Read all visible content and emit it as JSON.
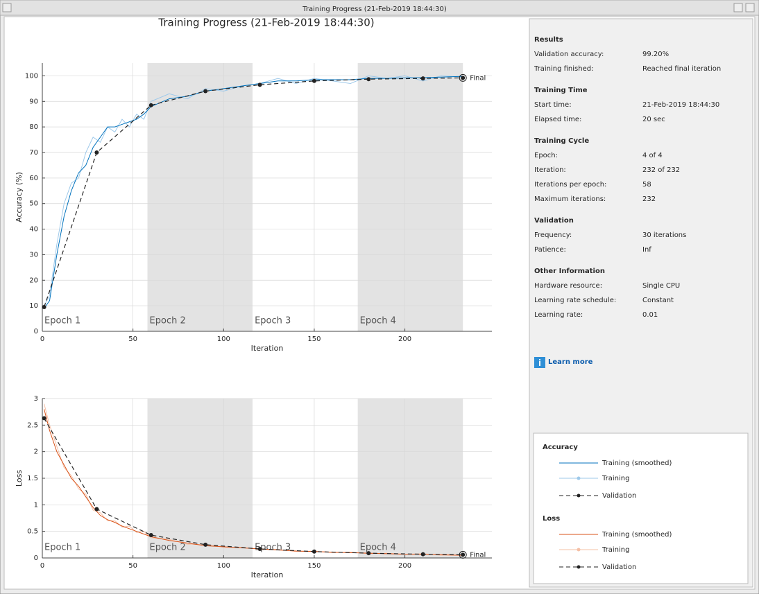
{
  "window_title": "Training Progress (21-Feb-2019 18:44:30)",
  "title": "Training Progress (21-Feb-2019 18:44:30)",
  "chart_data": [
    {
      "type": "line",
      "xlabel": "Iteration",
      "ylabel": "Accuracy (%)",
      "xlim": [
        0,
        248
      ],
      "ylim": [
        0,
        105
      ],
      "xticks": [
        0,
        50,
        100,
        150,
        200
      ],
      "yticks": [
        0,
        10,
        20,
        30,
        40,
        50,
        60,
        70,
        80,
        90,
        100
      ],
      "grid": true,
      "epochs": [
        {
          "label": "Epoch 1",
          "x": [
            0,
            58
          ]
        },
        {
          "label": "Epoch 2",
          "x": [
            58,
            116
          ]
        },
        {
          "label": "Epoch 3",
          "x": [
            116,
            174
          ]
        },
        {
          "label": "Epoch 4",
          "x": [
            174,
            232
          ]
        }
      ],
      "final_label": "Final",
      "series": [
        {
          "name": "Training",
          "color": "#9ec9ea",
          "x": [
            1,
            4,
            8,
            12,
            16,
            20,
            24,
            28,
            32,
            36,
            40,
            44,
            48,
            52,
            56,
            60,
            70,
            80,
            90,
            100,
            110,
            120,
            130,
            140,
            150,
            160,
            170,
            180,
            190,
            200,
            210,
            220,
            232
          ],
          "values": [
            10,
            14,
            34,
            50,
            58,
            60,
            70,
            76,
            74,
            80,
            78,
            83,
            80,
            85,
            83,
            90,
            93,
            91,
            95,
            94,
            96,
            97,
            99,
            97,
            99,
            98,
            97,
            100,
            99,
            100,
            98,
            100,
            99.5
          ]
        },
        {
          "name": "Training (smoothed)",
          "color": "#0072bd",
          "x": [
            1,
            4,
            8,
            12,
            16,
            20,
            24,
            28,
            32,
            36,
            40,
            44,
            48,
            52,
            56,
            60,
            70,
            80,
            90,
            100,
            110,
            120,
            130,
            140,
            150,
            160,
            170,
            180,
            190,
            200,
            210,
            220,
            232
          ],
          "values": [
            9,
            12,
            30,
            45,
            55,
            62,
            65,
            72,
            76,
            80,
            80,
            81,
            82,
            83,
            85,
            88,
            91,
            92,
            94,
            95,
            96,
            97,
            98,
            98,
            98.5,
            98.5,
            98.5,
            99,
            99,
            99.2,
            99.3,
            99.5,
            99.8
          ]
        },
        {
          "name": "Validation",
          "color": "#222222",
          "dashed": true,
          "markers": true,
          "x": [
            1,
            30,
            60,
            90,
            120,
            150,
            180,
            210,
            232
          ],
          "values": [
            9.5,
            70,
            88.5,
            94,
            96.5,
            98,
            98.7,
            99,
            99.2
          ]
        }
      ]
    },
    {
      "type": "line",
      "xlabel": "Iteration",
      "ylabel": "Loss",
      "xlim": [
        0,
        248
      ],
      "ylim": [
        0,
        3
      ],
      "xticks": [
        0,
        50,
        100,
        150,
        200
      ],
      "yticks": [
        0,
        0.5,
        1,
        1.5,
        2,
        2.5,
        3
      ],
      "grid": true,
      "epochs": [
        {
          "label": "Epoch 1",
          "x": [
            0,
            58
          ]
        },
        {
          "label": "Epoch 2",
          "x": [
            58,
            116
          ]
        },
        {
          "label": "Epoch 3",
          "x": [
            116,
            174
          ]
        },
        {
          "label": "Epoch 4",
          "x": [
            174,
            232
          ]
        }
      ],
      "final_label": "Final",
      "series": [
        {
          "name": "Training",
          "color": "#f5c0a6",
          "x": [
            1,
            4,
            8,
            12,
            16,
            20,
            24,
            28,
            32,
            36,
            40,
            44,
            48,
            52,
            56,
            60,
            70,
            80,
            90,
            100,
            110,
            120,
            130,
            140,
            150,
            160,
            170,
            180,
            190,
            200,
            210,
            220,
            232
          ],
          "values": [
            2.9,
            2.5,
            2.1,
            1.7,
            1.55,
            1.3,
            1.2,
            0.9,
            0.85,
            0.7,
            0.7,
            0.58,
            0.6,
            0.48,
            0.5,
            0.38,
            0.35,
            0.26,
            0.25,
            0.2,
            0.2,
            0.16,
            0.16,
            0.12,
            0.13,
            0.1,
            0.11,
            0.08,
            0.09,
            0.07,
            0.08,
            0.05,
            0.05
          ]
        },
        {
          "name": "Training (smoothed)",
          "color": "#d95319",
          "x": [
            1,
            4,
            8,
            12,
            16,
            20,
            24,
            28,
            32,
            36,
            40,
            44,
            48,
            52,
            56,
            60,
            70,
            80,
            90,
            100,
            110,
            120,
            130,
            140,
            150,
            160,
            170,
            180,
            190,
            200,
            210,
            220,
            232
          ],
          "values": [
            2.8,
            2.4,
            2.0,
            1.75,
            1.5,
            1.35,
            1.15,
            0.95,
            0.8,
            0.72,
            0.67,
            0.6,
            0.55,
            0.5,
            0.45,
            0.4,
            0.33,
            0.28,
            0.23,
            0.21,
            0.19,
            0.17,
            0.15,
            0.13,
            0.12,
            0.11,
            0.1,
            0.09,
            0.08,
            0.07,
            0.07,
            0.06,
            0.05
          ]
        },
        {
          "name": "Validation",
          "color": "#222222",
          "dashed": true,
          "markers": true,
          "x": [
            1,
            30,
            60,
            90,
            120,
            150,
            180,
            210,
            232
          ],
          "values": [
            2.63,
            0.92,
            0.43,
            0.25,
            0.17,
            0.12,
            0.09,
            0.07,
            0.06
          ]
        }
      ]
    }
  ],
  "results": {
    "sections": [
      {
        "title": "Results",
        "rows": [
          [
            "Validation accuracy:",
            "99.20%"
          ],
          [
            "Training finished:",
            "Reached final iteration"
          ]
        ]
      },
      {
        "title": "Training Time",
        "rows": [
          [
            "Start time:",
            "21-Feb-2019 18:44:30"
          ],
          [
            "Elapsed time:",
            "20 sec"
          ]
        ]
      },
      {
        "title": "Training Cycle",
        "rows": [
          [
            "Epoch:",
            "4 of 4"
          ],
          [
            "Iteration:",
            "232 of 232"
          ],
          [
            "Iterations per epoch:",
            "58"
          ],
          [
            "Maximum iterations:",
            "232"
          ]
        ]
      },
      {
        "title": "Validation",
        "rows": [
          [
            "Frequency:",
            "30 iterations"
          ],
          [
            "Patience:",
            "Inf"
          ]
        ]
      },
      {
        "title": "Other Information",
        "rows": [
          [
            "Hardware resource:",
            "Single CPU"
          ],
          [
            "Learning rate schedule:",
            "Constant"
          ],
          [
            "Learning rate:",
            "0.01"
          ]
        ]
      }
    ]
  },
  "learn_more": "Learn more",
  "legend": {
    "groups": [
      "Accuracy",
      "Loss"
    ]
  }
}
